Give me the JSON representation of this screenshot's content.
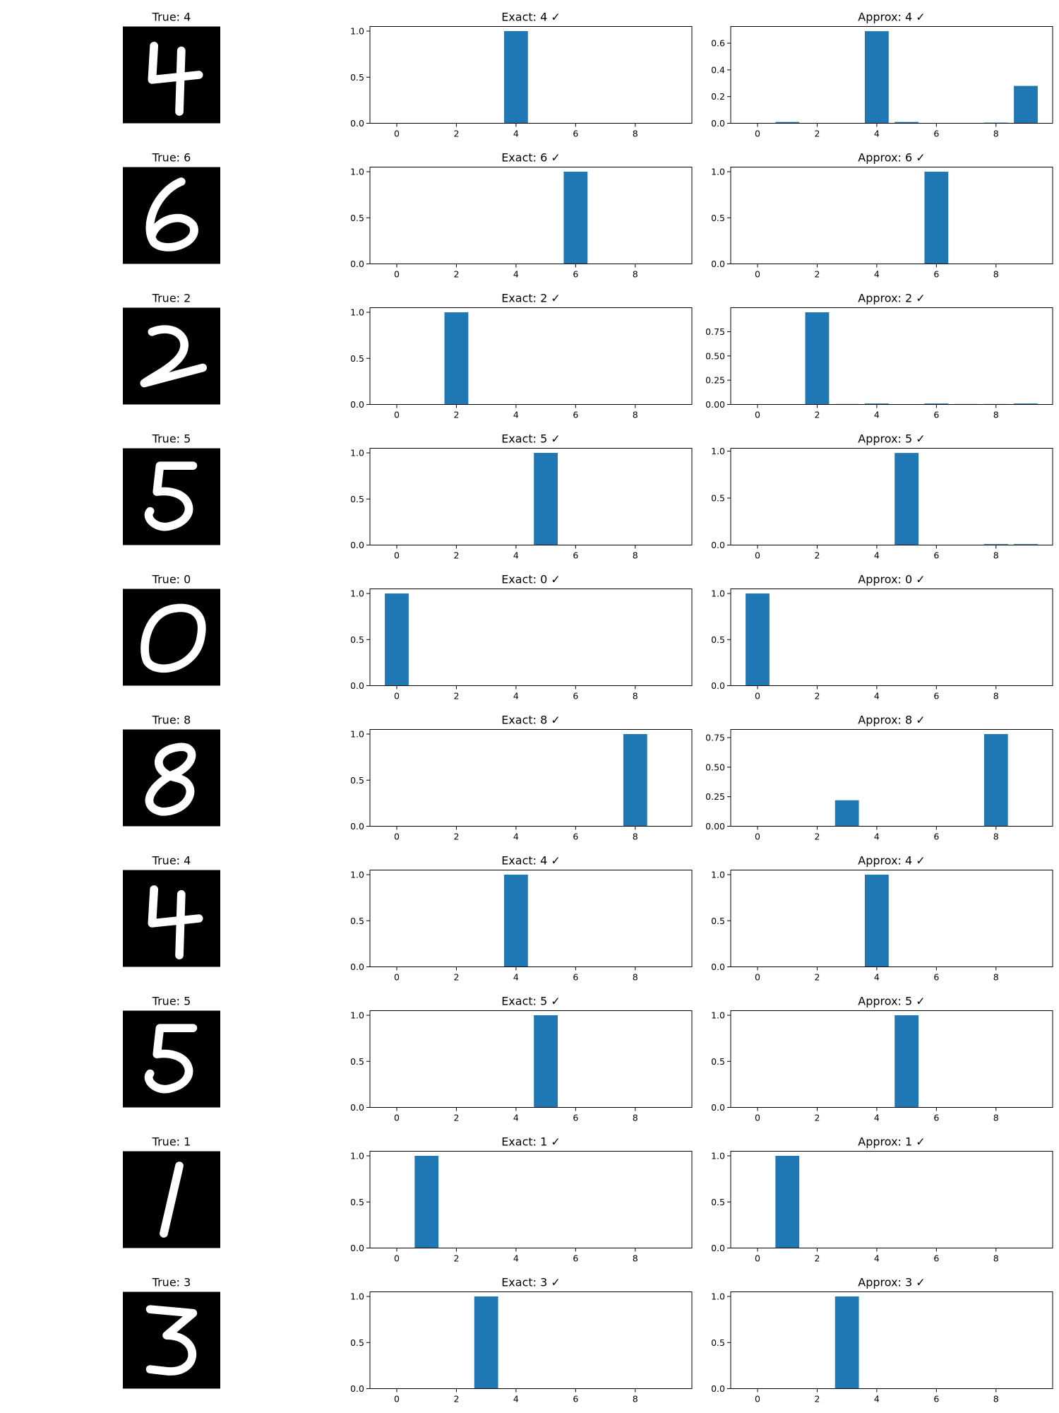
{
  "figure": {
    "bar_color": "#1f77b4",
    "axis_color": "#000000",
    "digit_background": "#000000",
    "digit_foreground": "#ffffff"
  },
  "chart_data": [
    {
      "type": "image",
      "title": "True: 4",
      "label": 4
    },
    {
      "type": "bar",
      "title": "Exact: 4 ✓",
      "categories": [
        0,
        1,
        2,
        3,
        4,
        5,
        6,
        7,
        8,
        9
      ],
      "values": [
        0,
        0,
        0,
        0,
        1.0,
        0,
        0,
        0,
        0,
        0
      ],
      "ylim": [
        0,
        1.05
      ],
      "yticks": [
        "0.0",
        "0.5",
        "1.0"
      ],
      "xticks": [
        "0",
        "2",
        "4",
        "6",
        "8"
      ]
    },
    {
      "type": "bar",
      "title": "Approx: 4 ✓",
      "categories": [
        0,
        1,
        2,
        3,
        4,
        5,
        6,
        7,
        8,
        9
      ],
      "values": [
        0,
        0.01,
        0,
        0,
        0.69,
        0.01,
        0,
        0,
        0.005,
        0.28
      ],
      "ylim": [
        0,
        0.725
      ],
      "yticks": [
        "0.0",
        "0.2",
        "0.4",
        "0.6"
      ],
      "xticks": [
        "0",
        "2",
        "4",
        "6",
        "8"
      ]
    },
    {
      "type": "image",
      "title": "True: 6",
      "label": 6
    },
    {
      "type": "bar",
      "title": "Exact: 6 ✓",
      "categories": [
        0,
        1,
        2,
        3,
        4,
        5,
        6,
        7,
        8,
        9
      ],
      "values": [
        0,
        0,
        0,
        0,
        0,
        0,
        1.0,
        0,
        0,
        0
      ],
      "ylim": [
        0,
        1.05
      ],
      "yticks": [
        "0.0",
        "0.5",
        "1.0"
      ],
      "xticks": [
        "0",
        "2",
        "4",
        "6",
        "8"
      ]
    },
    {
      "type": "bar",
      "title": "Approx: 6 ✓",
      "categories": [
        0,
        1,
        2,
        3,
        4,
        5,
        6,
        7,
        8,
        9
      ],
      "values": [
        0,
        0,
        0,
        0,
        0,
        0,
        1.0,
        0,
        0,
        0
      ],
      "ylim": [
        0,
        1.05
      ],
      "yticks": [
        "0.0",
        "0.5",
        "1.0"
      ],
      "xticks": [
        "0",
        "2",
        "4",
        "6",
        "8"
      ]
    },
    {
      "type": "image",
      "title": "True: 2",
      "label": 2
    },
    {
      "type": "bar",
      "title": "Exact: 2 ✓",
      "categories": [
        0,
        1,
        2,
        3,
        4,
        5,
        6,
        7,
        8,
        9
      ],
      "values": [
        0,
        0,
        1.0,
        0,
        0,
        0,
        0,
        0,
        0,
        0
      ],
      "ylim": [
        0,
        1.05
      ],
      "yticks": [
        "0.0",
        "0.5",
        "1.0"
      ],
      "xticks": [
        "0",
        "2",
        "4",
        "6",
        "8"
      ]
    },
    {
      "type": "bar",
      "title": "Approx: 2 ✓",
      "categories": [
        0,
        1,
        2,
        3,
        4,
        5,
        6,
        7,
        8,
        9
      ],
      "values": [
        0,
        0,
        0.95,
        0.005,
        0.01,
        0,
        0.01,
        0.005,
        0.005,
        0.01
      ],
      "ylim": [
        0,
        0.9975
      ],
      "yticks": [
        "0.00",
        "0.25",
        "0.50",
        "0.75"
      ],
      "xticks": [
        "0",
        "2",
        "4",
        "6",
        "8"
      ]
    },
    {
      "type": "image",
      "title": "True: 5",
      "label": 5
    },
    {
      "type": "bar",
      "title": "Exact: 5 ✓",
      "categories": [
        0,
        1,
        2,
        3,
        4,
        5,
        6,
        7,
        8,
        9
      ],
      "values": [
        0,
        0,
        0,
        0,
        0,
        1.0,
        0,
        0,
        0,
        0
      ],
      "ylim": [
        0,
        1.05
      ],
      "yticks": [
        "0.0",
        "0.5",
        "1.0"
      ],
      "xticks": [
        "0",
        "2",
        "4",
        "6",
        "8"
      ]
    },
    {
      "type": "bar",
      "title": "Approx: 5 ✓",
      "categories": [
        0,
        1,
        2,
        3,
        4,
        5,
        6,
        7,
        8,
        9
      ],
      "values": [
        0,
        0,
        0,
        0,
        0,
        0.98,
        0,
        0,
        0.01,
        0.01
      ],
      "ylim": [
        0,
        1.03
      ],
      "yticks": [
        "0.0",
        "0.5",
        "1.0"
      ],
      "xticks": [
        "0",
        "2",
        "4",
        "6",
        "8"
      ]
    },
    {
      "type": "image",
      "title": "True: 0",
      "label": 0
    },
    {
      "type": "bar",
      "title": "Exact: 0 ✓",
      "categories": [
        0,
        1,
        2,
        3,
        4,
        5,
        6,
        7,
        8,
        9
      ],
      "values": [
        1.0,
        0,
        0,
        0,
        0,
        0,
        0,
        0,
        0,
        0
      ],
      "ylim": [
        0,
        1.05
      ],
      "yticks": [
        "0.0",
        "0.5",
        "1.0"
      ],
      "xticks": [
        "0",
        "2",
        "4",
        "6",
        "8"
      ]
    },
    {
      "type": "bar",
      "title": "Approx: 0 ✓",
      "categories": [
        0,
        1,
        2,
        3,
        4,
        5,
        6,
        7,
        8,
        9
      ],
      "values": [
        1.0,
        0,
        0,
        0,
        0,
        0,
        0,
        0,
        0,
        0
      ],
      "ylim": [
        0,
        1.05
      ],
      "yticks": [
        "0.0",
        "0.5",
        "1.0"
      ],
      "xticks": [
        "0",
        "2",
        "4",
        "6",
        "8"
      ]
    },
    {
      "type": "image",
      "title": "True: 8",
      "label": 8
    },
    {
      "type": "bar",
      "title": "Exact: 8 ✓",
      "categories": [
        0,
        1,
        2,
        3,
        4,
        5,
        6,
        7,
        8,
        9
      ],
      "values": [
        0,
        0,
        0,
        0,
        0,
        0,
        0,
        0,
        1.0,
        0
      ],
      "ylim": [
        0,
        1.05
      ],
      "yticks": [
        "0.0",
        "0.5",
        "1.0"
      ],
      "xticks": [
        "0",
        "2",
        "4",
        "6",
        "8"
      ]
    },
    {
      "type": "bar",
      "title": "Approx: 8 ✓",
      "categories": [
        0,
        1,
        2,
        3,
        4,
        5,
        6,
        7,
        8,
        9
      ],
      "values": [
        0,
        0,
        0,
        0.22,
        0,
        0,
        0,
        0,
        0.78,
        0
      ],
      "ylim": [
        0,
        0.819
      ],
      "yticks": [
        "0.00",
        "0.25",
        "0.50",
        "0.75"
      ],
      "xticks": [
        "0",
        "2",
        "4",
        "6",
        "8"
      ]
    },
    {
      "type": "image",
      "title": "True: 4",
      "label": 4
    },
    {
      "type": "bar",
      "title": "Exact: 4 ✓",
      "categories": [
        0,
        1,
        2,
        3,
        4,
        5,
        6,
        7,
        8,
        9
      ],
      "values": [
        0,
        0,
        0,
        0,
        1.0,
        0,
        0,
        0,
        0,
        0
      ],
      "ylim": [
        0,
        1.05
      ],
      "yticks": [
        "0.0",
        "0.5",
        "1.0"
      ],
      "xticks": [
        "0",
        "2",
        "4",
        "6",
        "8"
      ]
    },
    {
      "type": "bar",
      "title": "Approx: 4 ✓",
      "categories": [
        0,
        1,
        2,
        3,
        4,
        5,
        6,
        7,
        8,
        9
      ],
      "values": [
        0,
        0,
        0,
        0,
        1.0,
        0,
        0,
        0,
        0,
        0
      ],
      "ylim": [
        0,
        1.05
      ],
      "yticks": [
        "0.0",
        "0.5",
        "1.0"
      ],
      "xticks": [
        "0",
        "2",
        "4",
        "6",
        "8"
      ]
    },
    {
      "type": "image",
      "title": "True: 5",
      "label": 5
    },
    {
      "type": "bar",
      "title": "Exact: 5 ✓",
      "categories": [
        0,
        1,
        2,
        3,
        4,
        5,
        6,
        7,
        8,
        9
      ],
      "values": [
        0,
        0,
        0,
        0,
        0,
        1.0,
        0,
        0,
        0,
        0
      ],
      "ylim": [
        0,
        1.05
      ],
      "yticks": [
        "0.0",
        "0.5",
        "1.0"
      ],
      "xticks": [
        "0",
        "2",
        "4",
        "6",
        "8"
      ]
    },
    {
      "type": "bar",
      "title": "Approx: 5 ✓",
      "categories": [
        0,
        1,
        2,
        3,
        4,
        5,
        6,
        7,
        8,
        9
      ],
      "values": [
        0,
        0,
        0,
        0,
        0,
        1.0,
        0,
        0,
        0,
        0
      ],
      "ylim": [
        0,
        1.05
      ],
      "yticks": [
        "0.0",
        "0.5",
        "1.0"
      ],
      "xticks": [
        "0",
        "2",
        "4",
        "6",
        "8"
      ]
    },
    {
      "type": "image",
      "title": "True: 1",
      "label": 1
    },
    {
      "type": "bar",
      "title": "Exact: 1 ✓",
      "categories": [
        0,
        1,
        2,
        3,
        4,
        5,
        6,
        7,
        8,
        9
      ],
      "values": [
        0,
        1.0,
        0,
        0,
        0,
        0,
        0,
        0,
        0,
        0
      ],
      "ylim": [
        0,
        1.05
      ],
      "yticks": [
        "0.0",
        "0.5",
        "1.0"
      ],
      "xticks": [
        "0",
        "2",
        "4",
        "6",
        "8"
      ]
    },
    {
      "type": "bar",
      "title": "Approx: 1 ✓",
      "categories": [
        0,
        1,
        2,
        3,
        4,
        5,
        6,
        7,
        8,
        9
      ],
      "values": [
        0,
        1.0,
        0,
        0,
        0,
        0,
        0,
        0,
        0,
        0
      ],
      "ylim": [
        0,
        1.05
      ],
      "yticks": [
        "0.0",
        "0.5",
        "1.0"
      ],
      "xticks": [
        "0",
        "2",
        "4",
        "6",
        "8"
      ]
    },
    {
      "type": "image",
      "title": "True: 3",
      "label": 3
    },
    {
      "type": "bar",
      "title": "Exact: 3 ✓",
      "categories": [
        0,
        1,
        2,
        3,
        4,
        5,
        6,
        7,
        8,
        9
      ],
      "values": [
        0,
        0,
        0,
        1.0,
        0,
        0,
        0,
        0,
        0,
        0
      ],
      "ylim": [
        0,
        1.05
      ],
      "yticks": [
        "0.0",
        "0.5",
        "1.0"
      ],
      "xticks": [
        "0",
        "2",
        "4",
        "6",
        "8"
      ]
    },
    {
      "type": "bar",
      "title": "Approx: 3 ✓",
      "categories": [
        0,
        1,
        2,
        3,
        4,
        5,
        6,
        7,
        8,
        9
      ],
      "values": [
        0,
        0,
        0,
        1.0,
        0,
        0,
        0,
        0,
        0,
        0
      ],
      "ylim": [
        0,
        1.05
      ],
      "yticks": [
        "0.0",
        "0.5",
        "1.0"
      ],
      "xticks": [
        "0",
        "2",
        "4",
        "6",
        "8"
      ]
    }
  ]
}
